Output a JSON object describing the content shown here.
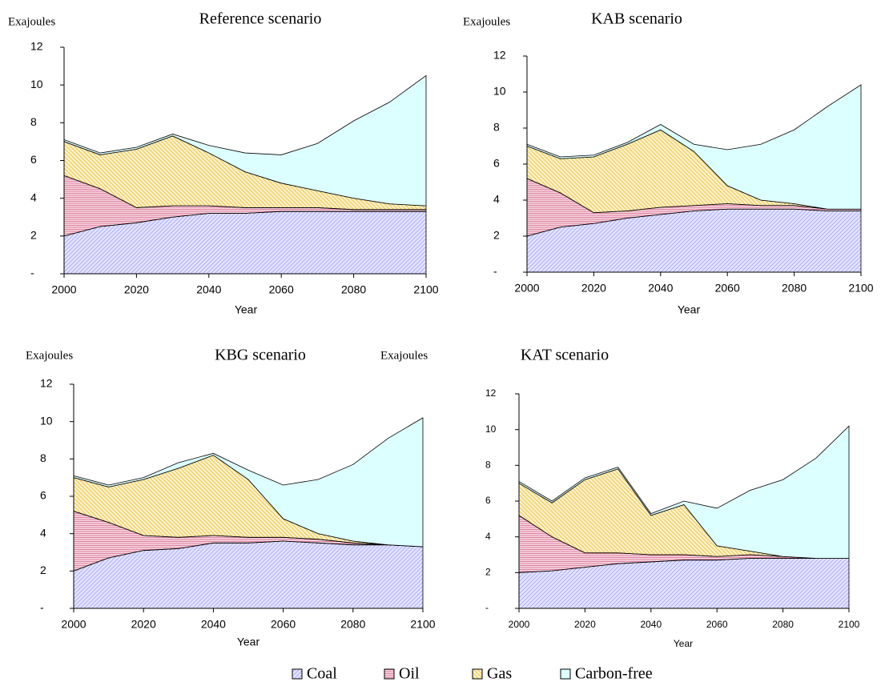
{
  "chart_data": [
    {
      "type": "area",
      "title": "Reference scenario",
      "ylabel": "Exajoules",
      "xlabel": "Year",
      "x": [
        2000,
        2010,
        2020,
        2030,
        2040,
        2050,
        2060,
        2070,
        2080,
        2090,
        2100
      ],
      "xlim": [
        2000,
        2100
      ],
      "xticks": [
        2000,
        2020,
        2040,
        2060,
        2080,
        2100
      ],
      "ylim": [
        0,
        12
      ],
      "yticks": [
        {
          "value": 0,
          "label": "-"
        },
        2,
        4,
        6,
        8,
        10,
        12
      ],
      "stacked": true,
      "series": [
        {
          "name": "Coal",
          "color": "#7070ff",
          "values": [
            2.0,
            2.5,
            2.7,
            3.0,
            3.2,
            3.2,
            3.3,
            3.3,
            3.3,
            3.3,
            3.3
          ]
        },
        {
          "name": "Oil",
          "color": "#c0104a",
          "values": [
            3.2,
            2.0,
            0.8,
            0.6,
            0.4,
            0.3,
            0.2,
            0.2,
            0.1,
            0.1,
            0.1
          ]
        },
        {
          "name": "Gas",
          "color": "#e8b400",
          "values": [
            1.8,
            1.8,
            3.1,
            3.7,
            2.8,
            1.9,
            1.3,
            0.9,
            0.6,
            0.3,
            0.2
          ]
        },
        {
          "name": "Carbon-free",
          "color": "#dcffff",
          "values": [
            0.1,
            0.1,
            0.1,
            0.1,
            0.4,
            1.0,
            1.5,
            2.5,
            4.1,
            5.4,
            6.9
          ]
        }
      ]
    },
    {
      "type": "area",
      "title": "KAB scenario",
      "ylabel": "Exajoules",
      "xlabel": "Year",
      "x": [
        2000,
        2010,
        2020,
        2030,
        2040,
        2050,
        2060,
        2070,
        2080,
        2090,
        2100
      ],
      "xlim": [
        2000,
        2100
      ],
      "xticks": [
        2000,
        2020,
        2040,
        2060,
        2080,
        2100
      ],
      "ylim": [
        0,
        12
      ],
      "yticks": [
        {
          "value": 0,
          "label": "-"
        },
        2,
        4,
        6,
        8,
        10,
        12
      ],
      "stacked": true,
      "series": [
        {
          "name": "Coal",
          "color": "#7070ff",
          "values": [
            2.0,
            2.5,
            2.7,
            3.0,
            3.2,
            3.4,
            3.5,
            3.5,
            3.5,
            3.4,
            3.4
          ]
        },
        {
          "name": "Oil",
          "color": "#c0104a",
          "values": [
            3.2,
            1.9,
            0.6,
            0.4,
            0.4,
            0.3,
            0.3,
            0.2,
            0.2,
            0.1,
            0.1
          ]
        },
        {
          "name": "Gas",
          "color": "#e8b400",
          "values": [
            1.8,
            1.9,
            3.1,
            3.7,
            4.3,
            3.0,
            1.0,
            0.3,
            0.1,
            0,
            0
          ]
        },
        {
          "name": "Carbon-free",
          "color": "#dcffff",
          "values": [
            0.1,
            0.1,
            0.1,
            0.1,
            0.3,
            0.4,
            2.0,
            3.1,
            4.1,
            5.7,
            6.9
          ]
        }
      ]
    },
    {
      "type": "area",
      "title": "KBG scenario",
      "ylabel": "Exajoules",
      "xlabel": "Year",
      "x": [
        2000,
        2010,
        2020,
        2030,
        2040,
        2050,
        2060,
        2070,
        2080,
        2090,
        2100
      ],
      "xlim": [
        2000,
        2100
      ],
      "xticks": [
        2000,
        2020,
        2040,
        2060,
        2080,
        2100
      ],
      "ylim": [
        0,
        12
      ],
      "yticks": [
        {
          "value": 0,
          "label": "-"
        },
        2,
        4,
        6,
        8,
        10,
        12
      ],
      "stacked": true,
      "series": [
        {
          "name": "Coal",
          "color": "#7070ff",
          "values": [
            2.0,
            2.7,
            3.1,
            3.2,
            3.5,
            3.5,
            3.6,
            3.5,
            3.4,
            3.4,
            3.3
          ]
        },
        {
          "name": "Oil",
          "color": "#c0104a",
          "values": [
            3.2,
            1.9,
            0.8,
            0.6,
            0.4,
            0.3,
            0.2,
            0.2,
            0.1,
            0,
            0
          ]
        },
        {
          "name": "Gas",
          "color": "#e8b400",
          "values": [
            1.8,
            1.9,
            3.0,
            3.7,
            4.3,
            3.1,
            1.0,
            0.3,
            0.1,
            0,
            0
          ]
        },
        {
          "name": "Carbon-free",
          "color": "#dcffff",
          "values": [
            0.1,
            0.1,
            0.1,
            0.3,
            0.1,
            0.5,
            1.8,
            2.9,
            4.1,
            5.7,
            6.9
          ]
        }
      ]
    },
    {
      "type": "area",
      "title": "KAT scenario",
      "ylabel": "Exajoules",
      "xlabel": "Year",
      "x": [
        2000,
        2010,
        2020,
        2030,
        2040,
        2050,
        2060,
        2070,
        2080,
        2090,
        2100
      ],
      "xlim": [
        2000,
        2100
      ],
      "xticks": [
        2000,
        2020,
        2040,
        2060,
        2080,
        2100
      ],
      "ylim": [
        0,
        12
      ],
      "yticks": [
        {
          "value": 0,
          "label": "-"
        },
        2,
        4,
        6,
        8,
        10,
        12
      ],
      "stacked": true,
      "series": [
        {
          "name": "Coal",
          "color": "#7070ff",
          "values": [
            2.0,
            2.1,
            2.3,
            2.5,
            2.6,
            2.7,
            2.7,
            2.8,
            2.8,
            2.8,
            2.8
          ]
        },
        {
          "name": "Oil",
          "color": "#c0104a",
          "values": [
            3.2,
            1.9,
            0.8,
            0.6,
            0.4,
            0.3,
            0.2,
            0.2,
            0.1,
            0,
            0
          ]
        },
        {
          "name": "Gas",
          "color": "#e8b400",
          "values": [
            1.8,
            1.9,
            4.1,
            4.7,
            2.2,
            2.8,
            0.6,
            0.2,
            0,
            0,
            0
          ]
        },
        {
          "name": "Carbon-free",
          "color": "#dcffff",
          "values": [
            0.1,
            0.1,
            0.1,
            0.1,
            0.1,
            0.2,
            2.1,
            3.4,
            4.3,
            5.6,
            7.4
          ]
        }
      ]
    }
  ]
}
